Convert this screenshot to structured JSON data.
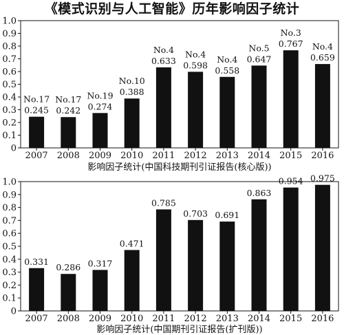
{
  "title": "《模式识别与人工智能》历年影响因子统计",
  "chart_data": [
    {
      "type": "bar",
      "title": "",
      "caption": "影响因子统计(中国科技期刊引证报告(核心版))",
      "categories": [
        "2007",
        "2008",
        "2009",
        "2010",
        "2011",
        "2012",
        "2013",
        "2014",
        "2015",
        "2016"
      ],
      "values": [
        0.245,
        0.242,
        0.274,
        0.388,
        0.633,
        0.598,
        0.558,
        0.647,
        0.767,
        0.659
      ],
      "ranks": [
        "No.17",
        "No.17",
        "No.19",
        "No.10",
        "No.4",
        "No.4",
        "No.4",
        "No.5",
        "No.3",
        "No.4"
      ],
      "ylim": [
        0,
        1.0
      ],
      "yticks": [
        "0",
        "0.1",
        "0.2",
        "0.3",
        "0.4",
        "0.5",
        "0.6",
        "0.7",
        "0.8",
        "0.9",
        "1.0"
      ],
      "grid": false,
      "bar_color": "#111111"
    },
    {
      "type": "bar",
      "title": "",
      "caption": "影响因子统计(中国期刊引证报告(扩刊版))",
      "categories": [
        "2007",
        "2008",
        "2009",
        "2010",
        "2011",
        "2012",
        "2013",
        "2014",
        "2015",
        "2016"
      ],
      "values": [
        0.331,
        0.286,
        0.317,
        0.471,
        0.785,
        0.703,
        0.691,
        0.863,
        0.954,
        0.975
      ],
      "ranks": [],
      "ylim": [
        0,
        1.0
      ],
      "yticks": [
        "0",
        "0.1",
        "0.2",
        "0.3",
        "0.4",
        "0.5",
        "0.6",
        "0.7",
        "0.8",
        "0.9",
        "1.0"
      ],
      "grid": false,
      "bar_color": "#111111"
    }
  ]
}
